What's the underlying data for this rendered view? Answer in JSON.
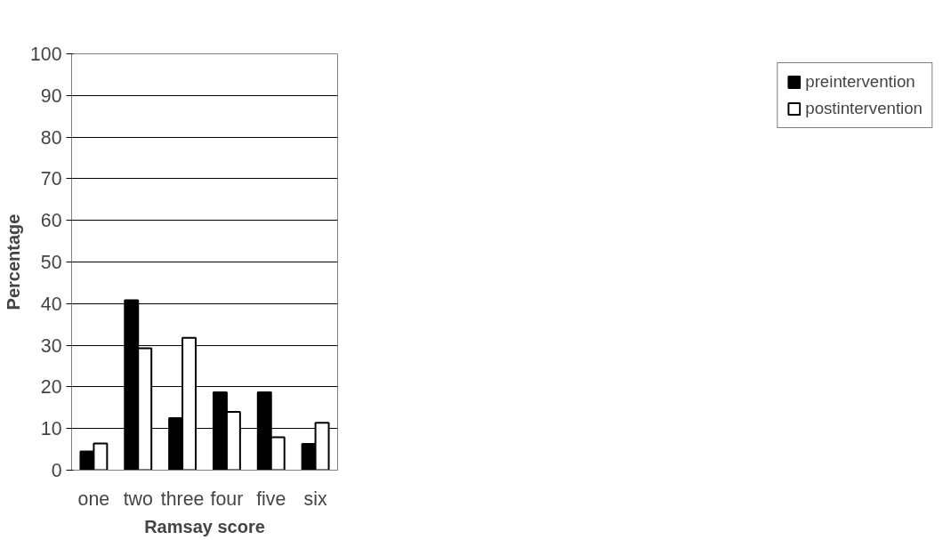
{
  "chart_data": {
    "type": "bar",
    "xlabel": "Ramsay score",
    "ylabel": "Percentage",
    "categories": [
      "one",
      "two",
      "three",
      "four",
      "five",
      "six"
    ],
    "series": [
      {
        "name": "preintervention",
        "color": "#000000",
        "values": [
          4.5,
          40.8,
          12.5,
          18.7,
          18.7,
          6.3
        ]
      },
      {
        "name": "postintervention",
        "color": "#ffffff",
        "values": [
          6.4,
          29.3,
          31.8,
          14.0,
          7.9,
          11.4
        ]
      }
    ],
    "ylim": [
      0,
      100
    ],
    "yticks": [
      0,
      10,
      20,
      30,
      40,
      50,
      60,
      70,
      80,
      90,
      100
    ],
    "grid": "y",
    "legend": "right"
  }
}
